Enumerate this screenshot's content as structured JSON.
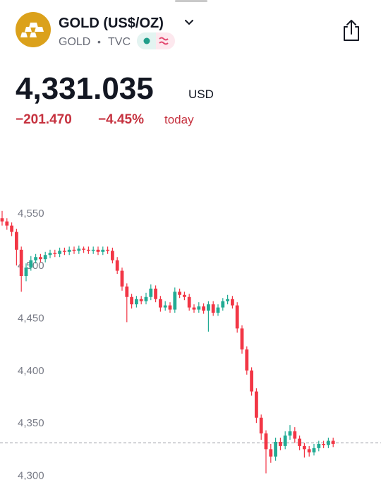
{
  "header": {
    "title": "GOLD (US$/OZ)",
    "symbol": "GOLD",
    "separator": "•",
    "exchange": "TVC"
  },
  "quote": {
    "price": "4,331.035",
    "currency": "USD",
    "change": "−201.470",
    "change_percent": "−4.45%",
    "period": "today"
  },
  "chart_data": {
    "type": "candlestick",
    "open": [
      4545,
      4542,
      4538,
      4532,
      4515,
      4490,
      4498,
      4505,
      4508,
      4506,
      4510,
      4512,
      4511,
      4514,
      4513,
      4515,
      4514,
      4516,
      4515,
      4514,
      4515,
      4513,
      4515,
      4514,
      4505,
      4495,
      4480,
      4470,
      4463,
      4468,
      4466,
      4470,
      4478,
      4468,
      4460,
      4462,
      4458,
      4475,
      4472,
      4470,
      4460,
      4458,
      4461,
      4457,
      4463,
      4455,
      4460,
      4466,
      4468,
      4462,
      4440,
      4420,
      4400,
      4380,
      4355,
      4340,
      4325,
      4318,
      4332,
      4328,
      4338,
      4342,
      4335,
      4328,
      4325,
      4322,
      4326,
      4330,
      4329,
      4333
    ],
    "high": [
      4552,
      4545,
      4541,
      4535,
      4518,
      4502,
      4509,
      4511,
      4511,
      4513,
      4515,
      4515,
      4517,
      4517,
      4518,
      4518,
      4519,
      4518,
      4518,
      4518,
      4518,
      4518,
      4518,
      4517,
      4508,
      4498,
      4483,
      4473,
      4471,
      4471,
      4474,
      4482,
      4481,
      4471,
      4466,
      4465,
      4479,
      4478,
      4475,
      4473,
      4463,
      4465,
      4464,
      4466,
      4466,
      4463,
      4469,
      4472,
      4471,
      4465,
      4443,
      4423,
      4403,
      4383,
      4358,
      4343,
      4330,
      4336,
      4336,
      4342,
      4348,
      4346,
      4338,
      4331,
      4328,
      4330,
      4333,
      4333,
      4336,
      4336
    ],
    "low": [
      4538,
      4534,
      4528,
      4500,
      4475,
      4485,
      4495,
      4502,
      4503,
      4503,
      4507,
      4508,
      4508,
      4510,
      4510,
      4511,
      4511,
      4512,
      4511,
      4511,
      4510,
      4510,
      4511,
      4502,
      4492,
      4476,
      4446,
      4459,
      4460,
      4463,
      4463,
      4467,
      4465,
      4456,
      4457,
      4455,
      4455,
      4469,
      4467,
      4457,
      4455,
      4455,
      4454,
      4437,
      4452,
      4452,
      4457,
      4463,
      4459,
      4436,
      4416,
      4396,
      4376,
      4350,
      4334,
      4302,
      4312,
      4314,
      4324,
      4325,
      4334,
      4331,
      4324,
      4317,
      4318,
      4319,
      4323,
      4326,
      4326,
      4327
    ],
    "close": [
      4542,
      4538,
      4532,
      4515,
      4490,
      4498,
      4505,
      4508,
      4506,
      4510,
      4512,
      4511,
      4514,
      4513,
      4515,
      4514,
      4516,
      4515,
      4514,
      4515,
      4513,
      4515,
      4514,
      4505,
      4495,
      4480,
      4470,
      4463,
      4468,
      4466,
      4470,
      4478,
      4468,
      4460,
      4462,
      4458,
      4475,
      4472,
      4470,
      4460,
      4458,
      4461,
      4457,
      4463,
      4455,
      4460,
      4466,
      4468,
      4462,
      4440,
      4420,
      4400,
      4380,
      4355,
      4340,
      4325,
      4318,
      4332,
      4328,
      4338,
      4342,
      4335,
      4328,
      4325,
      4322,
      4326,
      4330,
      4329,
      4333,
      4330
    ],
    "ylim": [
      4297,
      4568
    ],
    "yticks": [
      {
        "value": 4300,
        "label": "4,300"
      },
      {
        "value": 4350,
        "label": "4,350"
      },
      {
        "value": 4400,
        "label": "4,400"
      },
      {
        "value": 4450,
        "label": "4,450"
      },
      {
        "value": 4500,
        "label": "4,500"
      },
      {
        "value": 4550,
        "label": "4,550"
      }
    ],
    "last_price": 4331.035,
    "up_color": "#22ab94",
    "down_color": "#f23645"
  }
}
